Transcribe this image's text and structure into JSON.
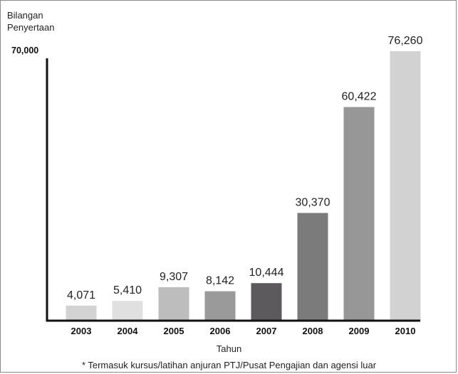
{
  "chart_data": {
    "type": "bar",
    "ylabel": "Bilangan\nPenyertaan",
    "xlabel": "Tahun",
    "y_axis_top_label": "70,000",
    "footnote": "* Termasuk kursus/latihan anjuran PTJ/Pusat Pengajian dan agensi luar",
    "categories": [
      "2003",
      "2004",
      "2005",
      "2006",
      "2007",
      "2008",
      "2009",
      "2010"
    ],
    "values": [
      4071,
      5410,
      9307,
      8142,
      10444,
      30370,
      60422,
      76260
    ],
    "value_labels": [
      "4,071",
      "5,410",
      "9,307",
      "8,142",
      "10,444",
      "30,370",
      "60,422",
      "76,260"
    ],
    "bar_colors": [
      "#d3d3d3",
      "#e0e0e0",
      "#bdbdbd",
      "#9a9a9a",
      "#5c5a5c",
      "#7b7b7b",
      "#979797",
      "#d2d2d2"
    ],
    "grid": false,
    "legend": "none"
  }
}
